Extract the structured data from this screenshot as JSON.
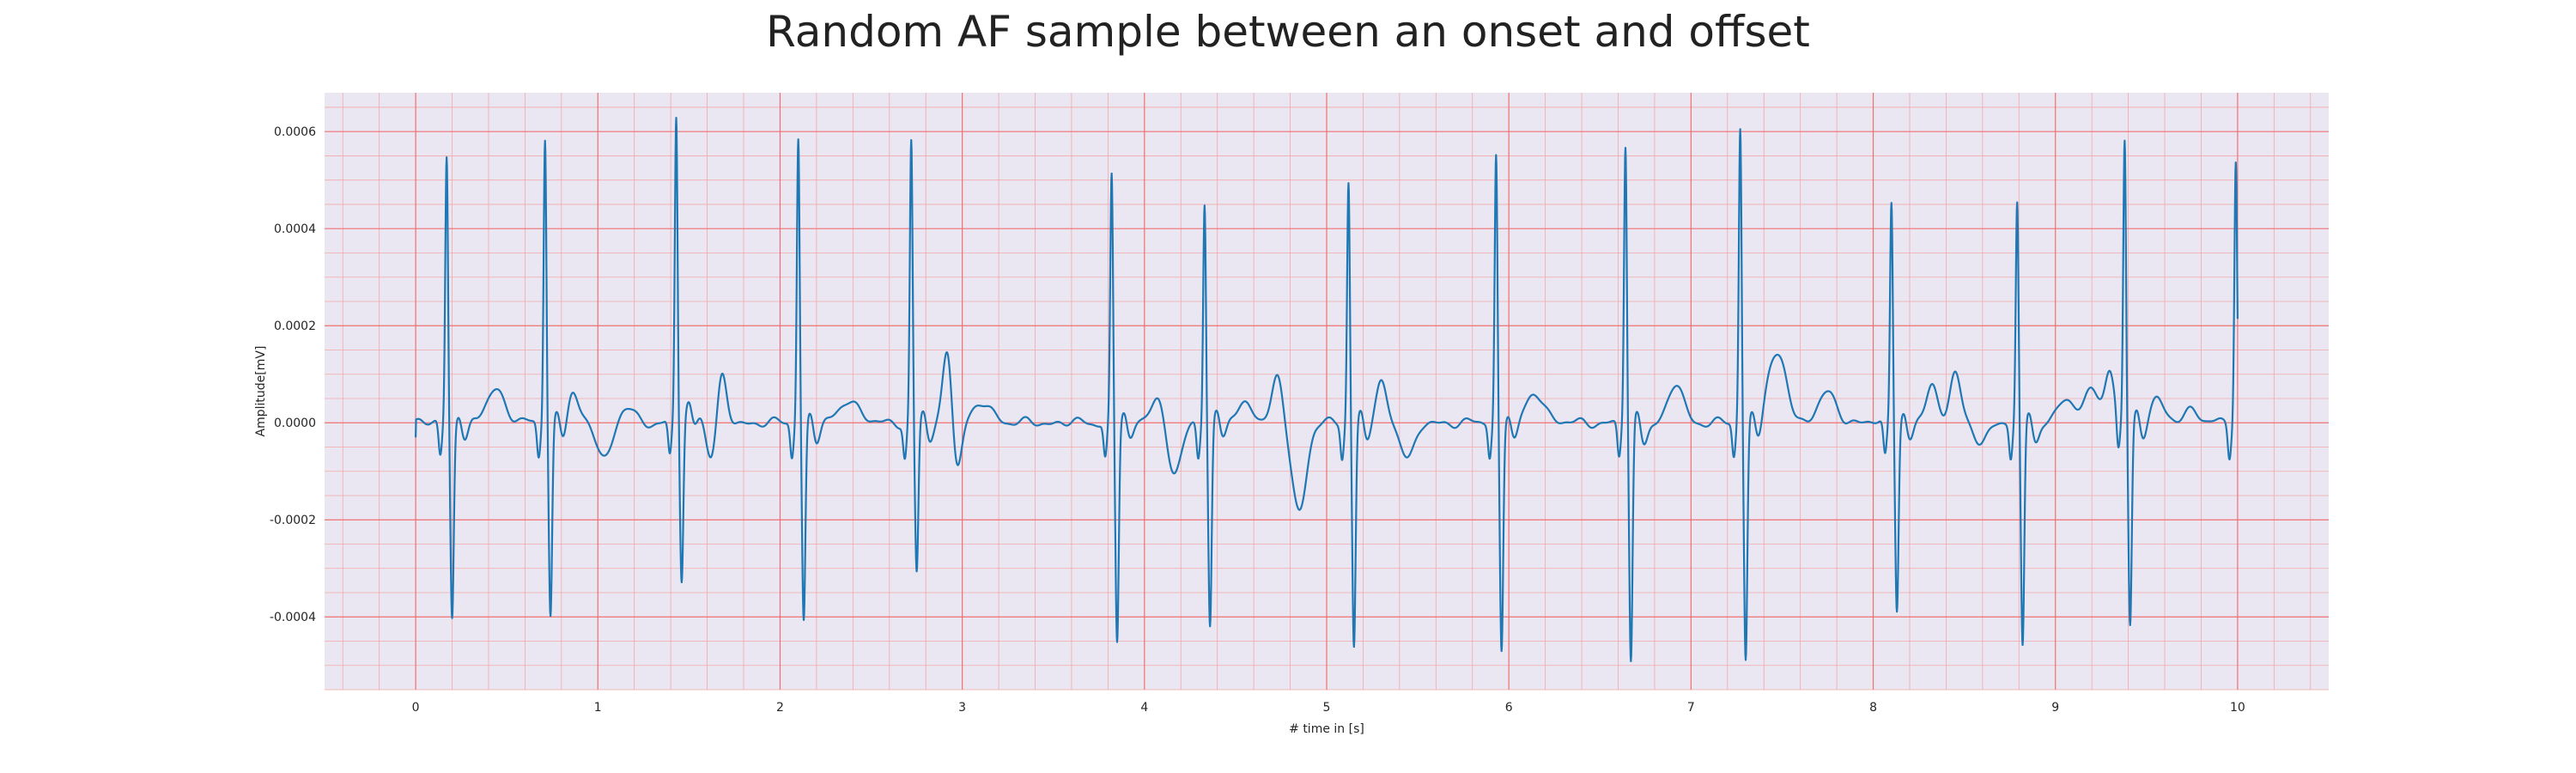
{
  "chart_data": {
    "type": "line",
    "title": "Random AF sample between an onset and offset",
    "xlabel": "# time in [s]",
    "ylabel": "Amplitude[mV]",
    "xlim": [
      -0.5,
      10.5
    ],
    "ylim": [
      -0.00055,
      0.00068
    ],
    "x_ticks": [
      0,
      1,
      2,
      3,
      4,
      5,
      6,
      7,
      8,
      9,
      10
    ],
    "x_tick_labels": [
      "0",
      "1",
      "2",
      "3",
      "4",
      "5",
      "6",
      "7",
      "8",
      "9",
      "10"
    ],
    "y_ticks": [
      -0.0004,
      -0.0002,
      0.0,
      0.0002,
      0.0004,
      0.0006
    ],
    "y_tick_labels": [
      "-0.0004",
      "-0.0002",
      "0.0000",
      "0.0002",
      "0.0004",
      "0.0006"
    ],
    "grid": true,
    "grid_major_color": "#f07070",
    "grid_minor_color": "#f2a8a8",
    "background_color": "#eae7f2",
    "line_color": "#1f77b4",
    "beats": [
      {
        "t": 0.17,
        "r": 0.00055,
        "s": -0.0004
      },
      {
        "t": 0.71,
        "r": 0.00059,
        "s": -0.0004
      },
      {
        "t": 1.43,
        "r": 0.00063,
        "s": -0.00033
      },
      {
        "t": 2.1,
        "r": 0.00059,
        "s": -0.00041
      },
      {
        "t": 2.72,
        "r": 0.00058,
        "s": -0.00031
      },
      {
        "t": 3.82,
        "r": 0.00051,
        "s": -0.00045
      },
      {
        "t": 4.33,
        "r": 0.00046,
        "s": -0.00042
      },
      {
        "t": 5.12,
        "r": 0.0005,
        "s": -0.00046
      },
      {
        "t": 5.93,
        "r": 0.00055,
        "s": -0.00047
      },
      {
        "t": 6.64,
        "r": 0.00057,
        "s": -0.0005
      },
      {
        "t": 7.27,
        "r": 0.00061,
        "s": -0.00049
      },
      {
        "t": 8.1,
        "r": 0.00046,
        "s": -0.00038
      },
      {
        "t": 8.79,
        "r": 0.00045,
        "s": -0.00047
      },
      {
        "t": 9.38,
        "r": 0.00058,
        "s": -0.00042
      },
      {
        "t": 9.99,
        "r": 0.00054,
        "s": -9e-05
      }
    ],
    "waves": [
      {
        "t": 0.44,
        "a": 7e-05,
        "w": 0.05
      },
      {
        "t": 0.86,
        "a": 6e-05,
        "w": 0.03
      },
      {
        "t": 1.04,
        "a": -7e-05,
        "w": 0.04
      },
      {
        "t": 1.16,
        "a": 3e-05,
        "w": 0.04
      },
      {
        "t": 1.55,
        "a": 4e-05,
        "w": 0.04
      },
      {
        "t": 1.68,
        "a": 0.0001,
        "w": 0.025
      },
      {
        "t": 1.62,
        "a": -8e-05,
        "w": 0.03
      },
      {
        "t": 2.38,
        "a": 5e-05,
        "w": 0.05
      },
      {
        "t": 2.92,
        "a": 0.00016,
        "w": 0.025
      },
      {
        "t": 2.97,
        "a": -0.0001,
        "w": 0.025
      },
      {
        "t": 3.12,
        "a": 4e-05,
        "w": 0.05
      },
      {
        "t": 4.07,
        "a": 6e-05,
        "w": 0.04
      },
      {
        "t": 4.16,
        "a": -0.00011,
        "w": 0.04
      },
      {
        "t": 4.55,
        "a": 4e-05,
        "w": 0.05
      },
      {
        "t": 4.73,
        "a": 9e-05,
        "w": 0.03
      },
      {
        "t": 4.85,
        "a": -0.00018,
        "w": 0.04
      },
      {
        "t": 5.3,
        "a": 8e-05,
        "w": 0.03
      },
      {
        "t": 5.45,
        "a": -7e-05,
        "w": 0.04
      },
      {
        "t": 6.15,
        "a": 6e-05,
        "w": 0.05
      },
      {
        "t": 6.92,
        "a": 8e-05,
        "w": 0.04
      },
      {
        "t": 7.44,
        "a": 8e-05,
        "w": 0.04
      },
      {
        "t": 7.5,
        "a": 0.0001,
        "w": 0.04
      },
      {
        "t": 7.75,
        "a": 6e-05,
        "w": 0.05
      },
      {
        "t": 8.32,
        "a": 8e-05,
        "w": 0.03
      },
      {
        "t": 8.45,
        "a": 0.00011,
        "w": 0.03
      },
      {
        "t": 8.58,
        "a": -4e-05,
        "w": 0.04
      },
      {
        "t": 9.05,
        "a": 5e-05,
        "w": 0.04
      },
      {
        "t": 9.2,
        "a": 8e-05,
        "w": 0.04
      },
      {
        "t": 9.3,
        "a": 0.0001,
        "w": 0.025
      },
      {
        "t": 9.55,
        "a": 5e-05,
        "w": 0.04
      },
      {
        "t": 9.75,
        "a": 3e-05,
        "w": 0.04
      }
    ]
  }
}
